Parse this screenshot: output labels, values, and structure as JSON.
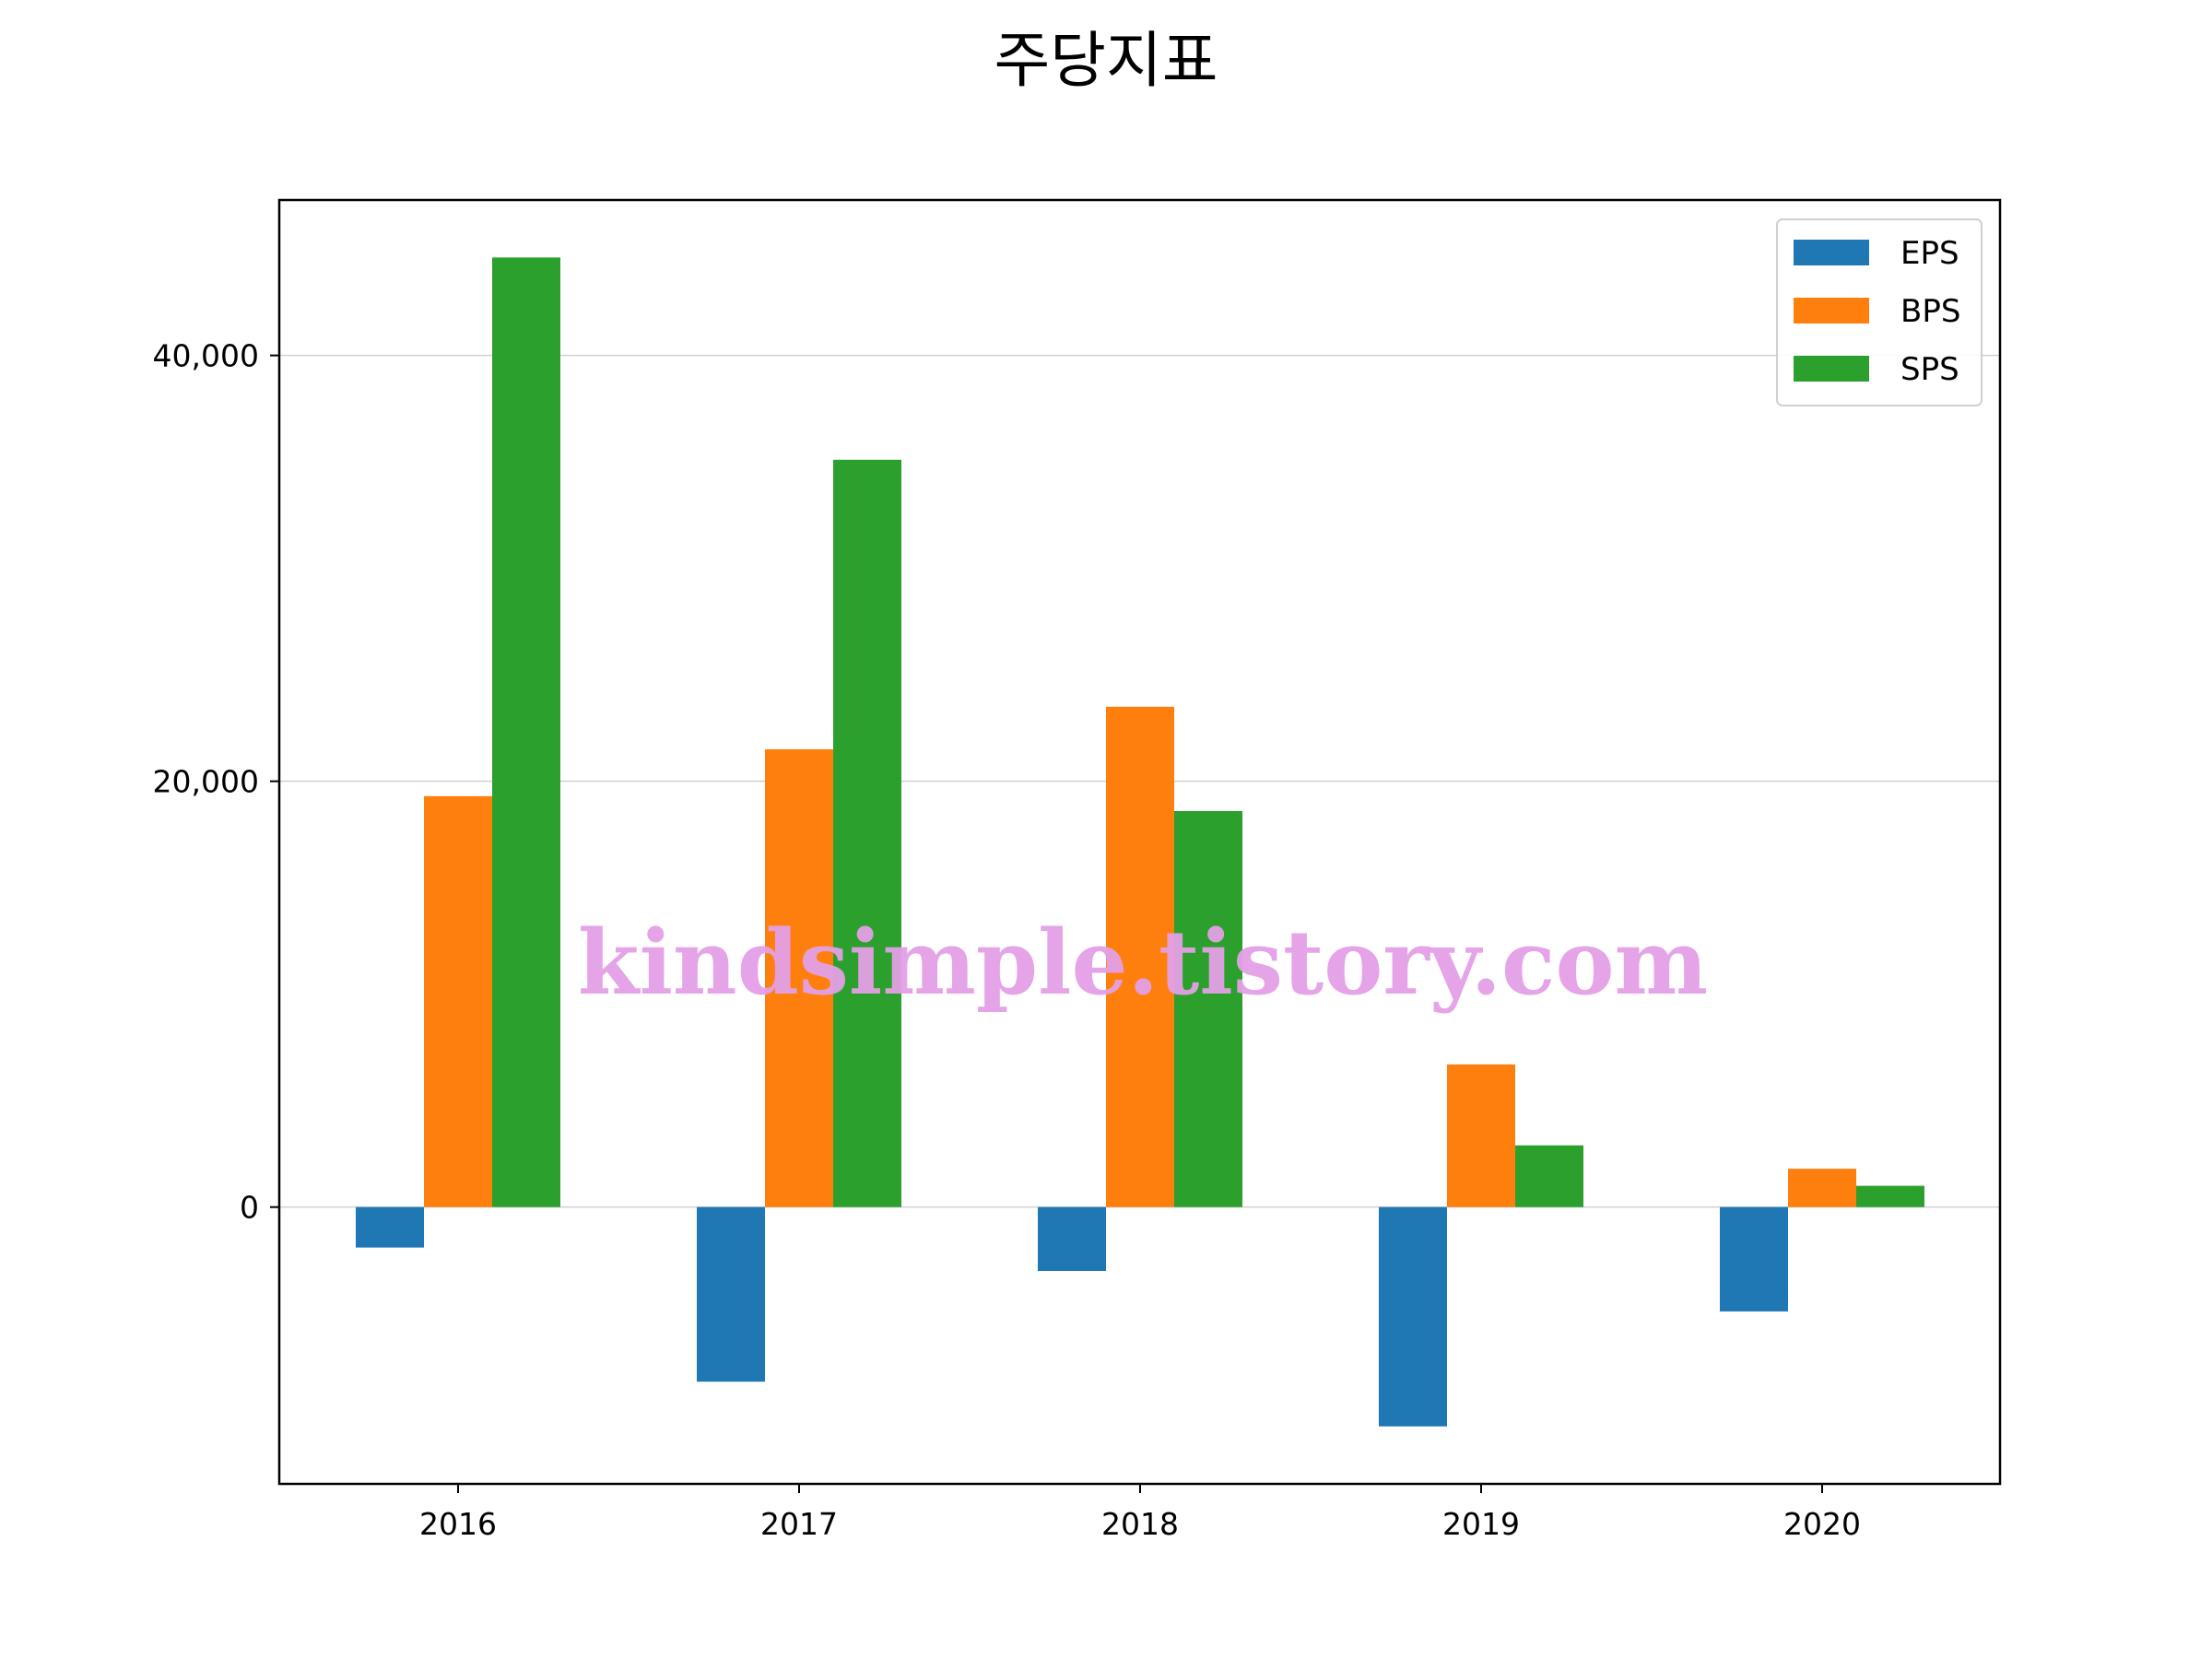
{
  "chart_data": {
    "type": "bar",
    "title": "주당지표",
    "xlabel": "",
    "ylabel": "",
    "categories": [
      "2016",
      "2017",
      "2018",
      "2019",
      "2020"
    ],
    "series": [
      {
        "name": "EPS",
        "color": "#1f77b4",
        "values": [
          -1900,
          -8200,
          -3000,
          -10300,
          -4900
        ]
      },
      {
        "name": "BPS",
        "color": "#ff7f0e",
        "values": [
          19300,
          21500,
          23500,
          6700,
          1800
        ]
      },
      {
        "name": "SPS",
        "color": "#2ca02c",
        "values": [
          44600,
          35100,
          18600,
          2900,
          1000
        ]
      }
    ],
    "ylim": [
      -13000,
      47300
    ],
    "yticks": [
      0,
      20000,
      40000
    ],
    "ytick_labels": [
      "0",
      "20,000",
      "40,000"
    ],
    "grid": "horizontal",
    "legend_position": "top-right"
  },
  "watermark": "kindsimple.tistory.com"
}
